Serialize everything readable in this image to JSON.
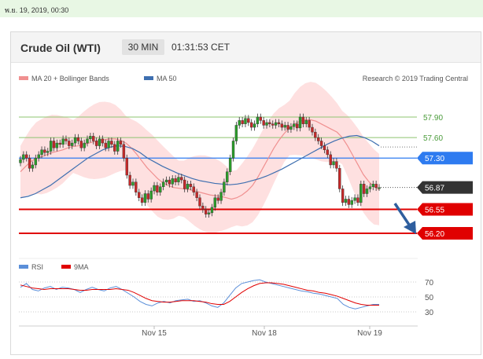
{
  "date_stamp": "พ.ย. 19, 2019, 00:30",
  "header": {
    "title": "Crude Oil (WTI)",
    "timeframe": "30 MIN",
    "clock": "01:31:53 CET"
  },
  "legend": {
    "bollinger": "MA 20 + Bollinger Bands",
    "ma50": "MA 50",
    "rsi": "RSI",
    "rsi_ma": "9MA"
  },
  "copyright": "Research © 2019 Trading Central",
  "colors": {
    "up": "#2a9d2a",
    "down": "#c62828",
    "band": "#fdd6d6",
    "ma20": "#f09090",
    "ma50": "#3e6fb0",
    "support": "#e00000",
    "pivot": "#2e7bf0",
    "last": "#333333",
    "resist": "#8dc46f",
    "arrow": "#2e5e9e"
  },
  "chart_data": {
    "type": "candlestick",
    "title": "Crude Oil (WTI)",
    "interval": "30 MIN",
    "x_ticks": [
      "Nov 15",
      "Nov 18",
      "Nov 19"
    ],
    "ylim": [
      56.0,
      58.05
    ],
    "levels": [
      {
        "value": 57.9,
        "label": "57.90",
        "kind": "resistance"
      },
      {
        "value": 57.6,
        "label": "57.60",
        "kind": "resistance"
      },
      {
        "value": 57.3,
        "label": "57.30",
        "kind": "pivot"
      },
      {
        "value": 56.87,
        "label": "56.87",
        "kind": "last"
      },
      {
        "value": 56.55,
        "label": "56.55",
        "kind": "support"
      },
      {
        "value": 56.2,
        "label": "56.20",
        "kind": "support"
      }
    ],
    "closes": [
      57.28,
      57.35,
      57.3,
      57.15,
      57.2,
      57.3,
      57.35,
      57.42,
      57.38,
      57.4,
      57.55,
      57.45,
      57.52,
      57.5,
      57.58,
      57.55,
      57.48,
      57.52,
      57.6,
      57.55,
      57.45,
      57.52,
      57.58,
      57.62,
      57.55,
      57.48,
      57.58,
      57.52,
      57.45,
      57.55,
      57.5,
      57.4,
      57.55,
      57.5,
      57.3,
      57.05,
      56.9,
      56.95,
      56.8,
      56.72,
      56.65,
      56.78,
      56.7,
      56.82,
      56.9,
      56.8,
      56.88,
      56.95,
      56.98,
      56.92,
      57.0,
      56.95,
      57.02,
      56.98,
      56.85,
      56.92,
      56.88,
      56.8,
      56.72,
      56.6,
      56.55,
      56.48,
      56.5,
      56.58,
      56.72,
      56.68,
      56.8,
      56.95,
      57.1,
      57.3,
      57.55,
      57.78,
      57.85,
      57.8,
      57.88,
      57.82,
      57.75,
      57.8,
      57.9,
      57.85,
      57.78,
      57.82,
      57.8,
      57.78,
      57.82,
      57.8,
      57.75,
      57.78,
      57.72,
      57.76,
      57.8,
      57.74,
      57.9,
      57.8,
      57.85,
      57.75,
      57.68,
      57.6,
      57.55,
      57.48,
      57.42,
      57.35,
      57.2,
      57.25,
      57.15,
      56.85,
      56.65,
      56.7,
      56.62,
      56.68,
      56.72,
      56.65,
      56.92,
      56.78,
      56.85,
      56.88,
      56.92,
      56.87,
      56.87
    ],
    "ma20": [
      57.1,
      57.18,
      57.25,
      57.3,
      57.32,
      57.35,
      57.38,
      57.4,
      57.42,
      57.45,
      57.47,
      57.48,
      57.5,
      57.52,
      57.54,
      57.56,
      57.57,
      57.58,
      57.58,
      57.56,
      57.52,
      57.45,
      57.36,
      57.26,
      57.16,
      57.08,
      57.0,
      56.94,
      56.9,
      56.87,
      56.86,
      56.85,
      56.84,
      56.82,
      56.8,
      56.78,
      56.76,
      56.75,
      56.74,
      56.72,
      56.7,
      56.72,
      56.76,
      56.82,
      56.9,
      57.02,
      57.16,
      57.3,
      57.44,
      57.56,
      57.66,
      57.74,
      57.8,
      57.84,
      57.86,
      57.86,
      57.84,
      57.8,
      57.76,
      57.72,
      57.68,
      57.6,
      57.48,
      57.34,
      57.2,
      57.06,
      56.96,
      56.88,
      56.84
    ],
    "ma50": [
      56.72,
      56.74,
      56.78,
      56.84,
      56.9,
      56.98,
      57.06,
      57.14,
      57.22,
      57.3,
      57.36,
      57.42,
      57.46,
      57.48,
      57.47,
      57.44,
      57.38,
      57.3,
      57.24,
      57.18,
      57.13,
      57.08,
      57.04,
      57.0,
      56.97,
      56.95,
      56.93,
      56.92,
      56.91,
      56.92,
      56.94,
      56.97,
      57.0,
      57.04,
      57.09,
      57.14,
      57.2,
      57.26,
      57.32,
      57.38,
      57.44,
      57.5,
      57.55,
      57.59,
      57.62,
      57.63,
      57.6,
      57.55,
      57.48
    ],
    "rsi_ticks": [
      70,
      50,
      30
    ],
    "rsi": [
      63,
      68,
      60,
      58,
      62,
      64,
      60,
      63,
      62,
      60,
      56,
      60,
      63,
      60,
      58,
      62,
      64,
      60,
      55,
      50,
      44,
      40,
      38,
      42,
      44,
      42,
      45,
      46,
      47,
      44,
      45,
      42,
      38,
      36,
      42,
      52,
      62,
      68,
      70,
      72,
      73,
      70,
      68,
      66,
      64,
      62,
      60,
      58,
      57,
      55,
      54,
      52,
      50,
      48,
      40,
      36,
      34,
      36,
      38,
      40,
      40
    ],
    "rsi_ma": [
      66,
      64,
      62,
      61,
      60,
      61,
      61,
      61,
      61,
      60,
      59,
      59,
      60,
      60,
      60,
      60,
      61,
      60,
      59,
      56,
      52,
      48,
      45,
      44,
      43,
      43,
      44,
      45,
      45,
      45,
      44,
      43,
      41,
      40,
      40,
      44,
      50,
      56,
      61,
      65,
      68,
      69,
      69,
      68,
      67,
      65,
      63,
      61,
      59,
      58,
      56,
      55,
      53,
      51,
      48,
      45,
      42,
      40,
      39,
      39,
      39
    ]
  }
}
